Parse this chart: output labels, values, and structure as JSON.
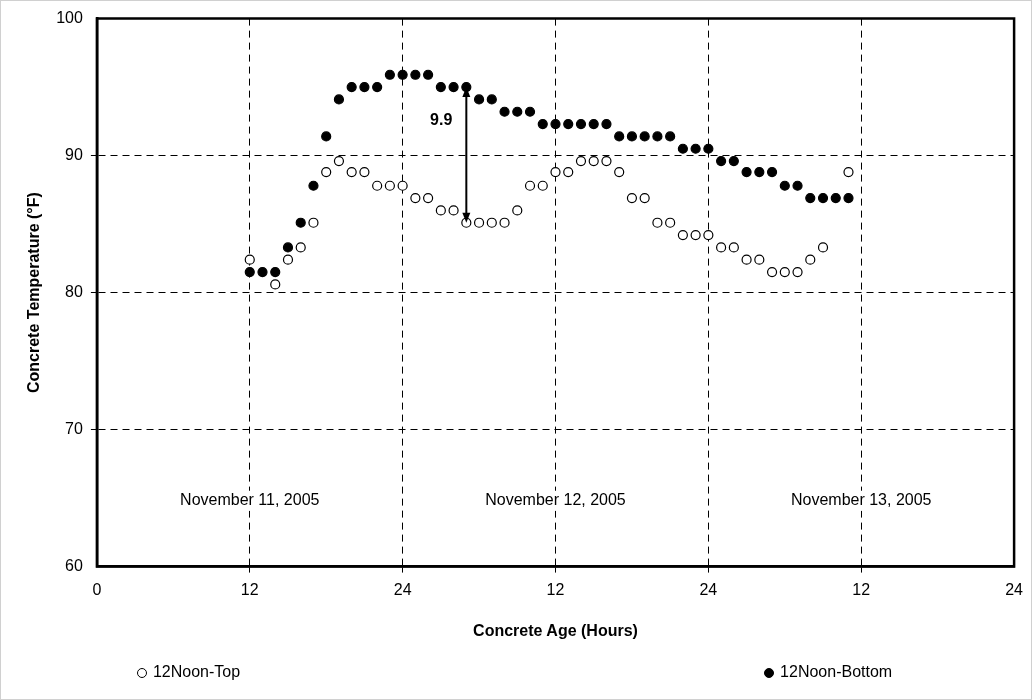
{
  "chart_data": {
    "type": "scatter",
    "xlabel": "Concrete Age (Hours)",
    "ylabel": "Concrete Temperature (°F)",
    "x": [
      "2005-11-11T12:00",
      "2005-11-11T13:00",
      "2005-11-11T14:00",
      "2005-11-11T15:00",
      "2005-11-11T16:00",
      "2005-11-11T17:00",
      "2005-11-11T18:00",
      "2005-11-11T19:00",
      "2005-11-11T20:00",
      "2005-11-11T21:00",
      "2005-11-11T22:00",
      "2005-11-11T23:00",
      "2005-11-12T00:00",
      "2005-11-12T01:00",
      "2005-11-12T02:00",
      "2005-11-12T03:00",
      "2005-11-12T04:00",
      "2005-11-12T05:00",
      "2005-11-12T06:00",
      "2005-11-12T07:00",
      "2005-11-12T08:00",
      "2005-11-12T09:00",
      "2005-11-12T10:00",
      "2005-11-12T11:00",
      "2005-11-12T12:00",
      "2005-11-12T13:00",
      "2005-11-12T14:00",
      "2005-11-12T15:00",
      "2005-11-12T16:00",
      "2005-11-12T17:00",
      "2005-11-12T18:00",
      "2005-11-12T19:00",
      "2005-11-12T20:00",
      "2005-11-12T21:00",
      "2005-11-12T22:00",
      "2005-11-12T23:00",
      "2005-11-13T00:00",
      "2005-11-13T01:00",
      "2005-11-13T02:00",
      "2005-11-13T03:00",
      "2005-11-13T04:00",
      "2005-11-13T05:00",
      "2005-11-13T06:00",
      "2005-11-13T07:00",
      "2005-11-13T08:00",
      "2005-11-13T09:00",
      "2005-11-13T10:00",
      "2005-11-13T11:00"
    ],
    "series": [
      {
        "name": "12Noon-Top",
        "color": "#000000",
        "values": [
          82.4,
          null,
          80.6,
          82.4,
          83.3,
          85.1,
          88.8,
          89.6,
          88.8,
          88.8,
          87.8,
          87.8,
          87.8,
          86.9,
          86.9,
          86.0,
          86.0,
          85.1,
          85.1,
          85.1,
          85.1,
          86.0,
          87.8,
          87.8,
          88.8,
          88.8,
          89.6,
          89.6,
          89.6,
          88.8,
          86.9,
          86.9,
          85.1,
          85.1,
          84.2,
          84.2,
          84.2,
          83.3,
          83.3,
          82.4,
          82.4,
          81.5,
          81.5,
          81.5,
          82.4,
          83.3,
          null,
          88.8
        ]
      },
      {
        "name": "12Noon-Bottom",
        "color": "#000000",
        "values": [
          81.5,
          81.5,
          81.5,
          83.3,
          85.1,
          87.8,
          91.4,
          94.1,
          95.0,
          95.0,
          95.0,
          95.9,
          95.9,
          95.9,
          95.9,
          95.0,
          95.0,
          95.0,
          94.1,
          94.1,
          93.2,
          93.2,
          93.2,
          92.3,
          92.3,
          92.3,
          92.3,
          92.3,
          92.3,
          91.4,
          91.4,
          91.4,
          91.4,
          91.4,
          90.5,
          90.5,
          90.5,
          89.6,
          89.6,
          88.8,
          88.8,
          88.8,
          87.8,
          87.8,
          86.9,
          86.9,
          86.9,
          86.9
        ]
      }
    ],
    "xlim": [
      "2005-11-11T00:00",
      "2005-11-14T00:00"
    ],
    "xticks": [
      {
        "value": "2005-11-11T00:00",
        "label": "0"
      },
      {
        "value": "2005-11-11T12:00",
        "label": "12"
      },
      {
        "value": "2005-11-12T00:00",
        "label": "24"
      },
      {
        "value": "2005-11-12T12:00",
        "label": "12"
      },
      {
        "value": "2005-11-13T00:00",
        "label": "24"
      },
      {
        "value": "2005-11-13T12:00",
        "label": "12"
      },
      {
        "value": "2005-11-14T00:00",
        "label": "24"
      }
    ],
    "ylim": [
      60,
      100
    ],
    "yticks": [
      60,
      70,
      80,
      90,
      100
    ],
    "grid": true,
    "legend": "bottom",
    "marker": "circle",
    "annotations": [
      "9.9",
      "November 11, 2005",
      "November 12, 2005",
      "November 13, 2005"
    ]
  }
}
